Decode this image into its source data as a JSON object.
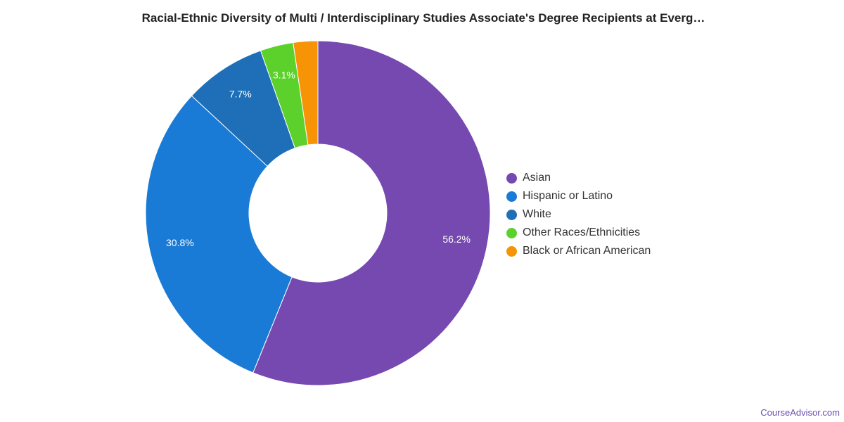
{
  "chart_data": {
    "type": "pie",
    "variant": "donut",
    "title": "Racial-Ethnic Diversity of Multi / Interdisciplinary Studies Associate's Degree Recipients at Everg…",
    "units": "%",
    "categories": [
      "Asian",
      "Hispanic or Latino",
      "White",
      "Other Races/Ethnicities",
      "Black or African American"
    ],
    "values": [
      56.2,
      30.8,
      7.7,
      3.1,
      2.3
    ],
    "labels": [
      "56.2%",
      "30.8%",
      "7.7%",
      "3.1%",
      ""
    ],
    "colors": [
      "#7549b0",
      "#1a7bd6",
      "#1f6fb8",
      "#5dd12b",
      "#f79406"
    ],
    "start_angle_deg": 0,
    "direction": "clockwise",
    "legend_position": "right"
  },
  "source": {
    "credit": "CourseAdvisor.com"
  }
}
